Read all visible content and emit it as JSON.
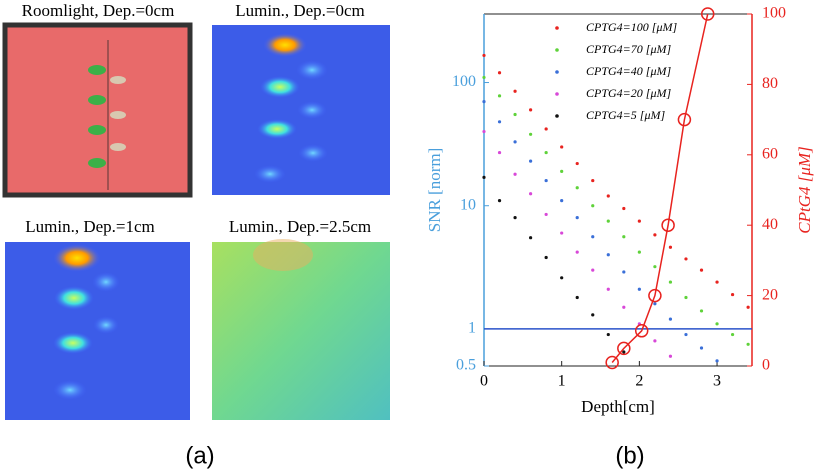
{
  "panels": [
    {
      "title": "Roomlight, Dep.=0cm"
    },
    {
      "title": "Lumin., Dep.=0cm"
    },
    {
      "title": "Lumin., Dep.=1cm"
    },
    {
      "title": "Lumin., Dep.=2.5cm"
    }
  ],
  "captions": [
    "(a)",
    "(b)"
  ],
  "chart_data": {
    "type": "scatter",
    "x_label": "Depth[cm]",
    "y_label": "SNR [norm]",
    "y2_label": "CPtG4 [μM]",
    "xlim": [
      0,
      3.45
    ],
    "xticks": [
      0,
      1,
      2,
      3
    ],
    "ylim": [
      0.5,
      360
    ],
    "yticks": [
      0.5,
      1,
      10,
      100
    ],
    "y_scale": "log",
    "y2lim": [
      0,
      100
    ],
    "y2ticks": [
      0,
      20,
      40,
      60,
      80,
      100
    ],
    "hline": 1,
    "hline_color": "#2a52c9",
    "x": [
      0,
      0.2,
      0.4,
      0.6,
      0.8,
      1,
      1.2,
      1.4,
      1.6,
      1.8,
      2,
      2.2,
      2.4,
      2.6,
      2.8,
      3,
      3.2,
      3.4
    ],
    "series": [
      {
        "name": "CPTG4=100 [μM]",
        "color": "#e8231f",
        "values": [
          166,
          120,
          85,
          60,
          42,
          30,
          22,
          16,
          12,
          9.5,
          7.5,
          5.8,
          4.6,
          3.7,
          3,
          2.4,
          1.9,
          1.5
        ]
      },
      {
        "name": "CPTG4=70 [μM]",
        "color": "#5fd23a",
        "values": [
          110,
          78,
          55,
          38,
          27,
          19,
          14,
          10,
          7.5,
          5.6,
          4.2,
          3.2,
          2.4,
          1.8,
          1.4,
          1.1,
          0.9,
          0.75
        ]
      },
      {
        "name": "CPTG4=40 [μM]",
        "color": "#3a6fd8",
        "values": [
          70,
          48,
          33,
          23,
          16,
          11,
          8,
          5.6,
          4,
          2.9,
          2.1,
          1.6,
          1.2,
          0.9,
          0.7,
          0.55,
          null,
          null
        ]
      },
      {
        "name": "CPTG4=20 [μM]",
        "color": "#d848d8",
        "values": [
          40,
          27,
          18,
          12.5,
          8.5,
          6,
          4.2,
          3,
          2.1,
          1.5,
          1.1,
          0.8,
          0.6,
          null,
          null,
          null,
          null,
          null
        ]
      },
      {
        "name": "CPTG4=5 [μM]",
        "color": "#111111",
        "values": [
          17,
          11,
          8,
          5.5,
          3.8,
          2.6,
          1.8,
          1.3,
          0.9,
          0.65,
          null,
          null,
          null,
          null,
          null,
          null,
          null,
          null
        ]
      }
    ],
    "y2_series": {
      "color": "#e8231f",
      "axis": "y2",
      "x": [
        1.65,
        1.8,
        2.03,
        2.2,
        2.37,
        2.58,
        2.88
      ],
      "values": [
        1,
        5,
        10,
        20,
        40,
        70,
        100
      ]
    },
    "left_axis_color": "#4a9fdc",
    "right_axis_color": "#e8231f"
  }
}
